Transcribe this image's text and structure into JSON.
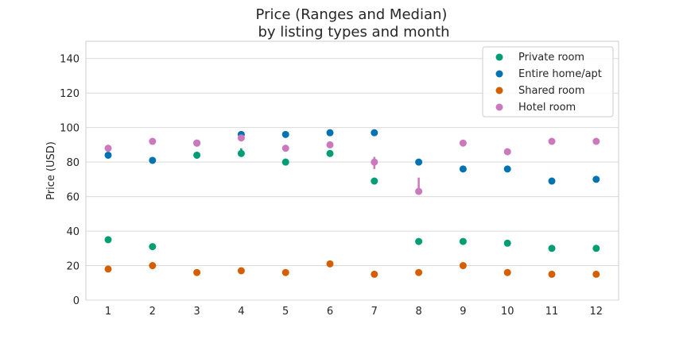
{
  "chart_data": {
    "type": "scatter",
    "title": [
      "Price (Ranges and Median)",
      "by listing types and month"
    ],
    "xlabel": "",
    "ylabel": "Price (USD)",
    "categories": [
      "1",
      "2",
      "3",
      "4",
      "5",
      "6",
      "7",
      "8",
      "9",
      "10",
      "11",
      "12"
    ],
    "ylim": [
      0,
      150
    ],
    "yticks": [
      0,
      20,
      40,
      60,
      80,
      100,
      120,
      140
    ],
    "grid": true,
    "legend_position": "top-right",
    "series": [
      {
        "name": "Private room",
        "color": "#029e73",
        "values": [
          35,
          31,
          84,
          85,
          80,
          85,
          69,
          34,
          34,
          33,
          30,
          30
        ],
        "ranges": [
          null,
          null,
          [
            82,
            86
          ],
          [
            83,
            88
          ],
          [
            79,
            82
          ],
          null,
          null,
          null,
          null,
          null,
          null,
          null
        ]
      },
      {
        "name": "Entire home/apt",
        "color": "#0173b2",
        "values": [
          84,
          81,
          91,
          96,
          96,
          97,
          97,
          80,
          76,
          76,
          69,
          70
        ],
        "ranges": [
          null,
          null,
          null,
          null,
          null,
          null,
          null,
          null,
          null,
          null,
          null,
          null
        ]
      },
      {
        "name": "Shared room",
        "color": "#d55e00",
        "values": [
          18,
          20,
          16,
          17,
          16,
          21,
          15,
          16,
          20,
          16,
          15,
          15
        ],
        "ranges": [
          null,
          null,
          null,
          null,
          null,
          null,
          null,
          null,
          null,
          null,
          null,
          null
        ]
      },
      {
        "name": "Hotel room",
        "color": "#cc78bc",
        "values": [
          88,
          92,
          91,
          94,
          88,
          90,
          80,
          63,
          91,
          86,
          92,
          92
        ],
        "ranges": [
          [
            86,
            90
          ],
          null,
          null,
          null,
          [
            86,
            90
          ],
          null,
          [
            76,
            83
          ],
          [
            62,
            71
          ],
          null,
          null,
          null,
          null
        ]
      }
    ]
  }
}
